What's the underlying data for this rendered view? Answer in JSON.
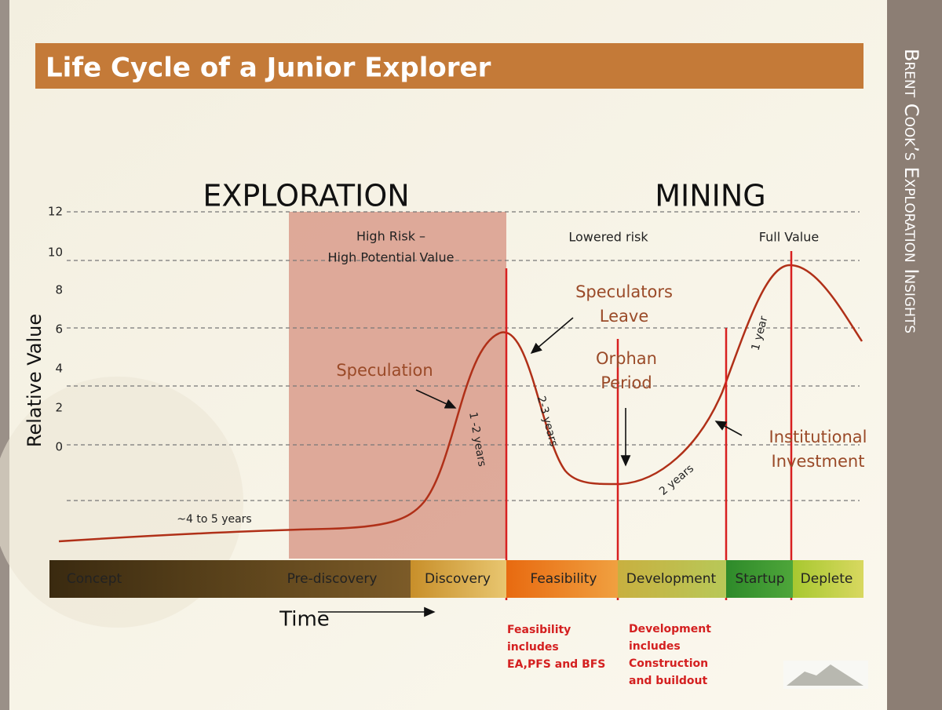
{
  "header": {
    "title": "Life Cycle of a Junior Explorer"
  },
  "side_banner": "Brent Cook’s Exploration Insights",
  "headings": {
    "exploration": "EXPLORATION",
    "mining": "MINING"
  },
  "y_axis": {
    "label": "Relative Value",
    "ticks": [
      12,
      10,
      8,
      6,
      4,
      2,
      0
    ]
  },
  "zones": {
    "high_risk": [
      "High Risk –",
      "High Potential Value"
    ],
    "lowered_risk": "Lowered risk",
    "full_value": "Full Value"
  },
  "annotations": {
    "speculation": "Speculation",
    "speculators_leave": [
      "Speculators",
      "Leave"
    ],
    "orphan_period": [
      "Orphan",
      "Period"
    ],
    "institutional_investment": [
      "Institutional",
      "Investment"
    ]
  },
  "durations": {
    "pre": "~4 to 5 years",
    "discovery": "1 -2 years",
    "decline": "2-3 years",
    "orphan": "2 years",
    "startup": "1 year"
  },
  "stages": [
    "Concept",
    "Pre-discovery",
    "Discovery",
    "Feasibility",
    "Development",
    "Startup",
    "Deplete"
  ],
  "time_label": "Time",
  "notes": {
    "feasibility": [
      "Feasibility",
      "includes",
      "EA,PFS and BFS"
    ],
    "development": [
      "Development",
      "includes",
      "Construction",
      "and buildout"
    ]
  }
}
